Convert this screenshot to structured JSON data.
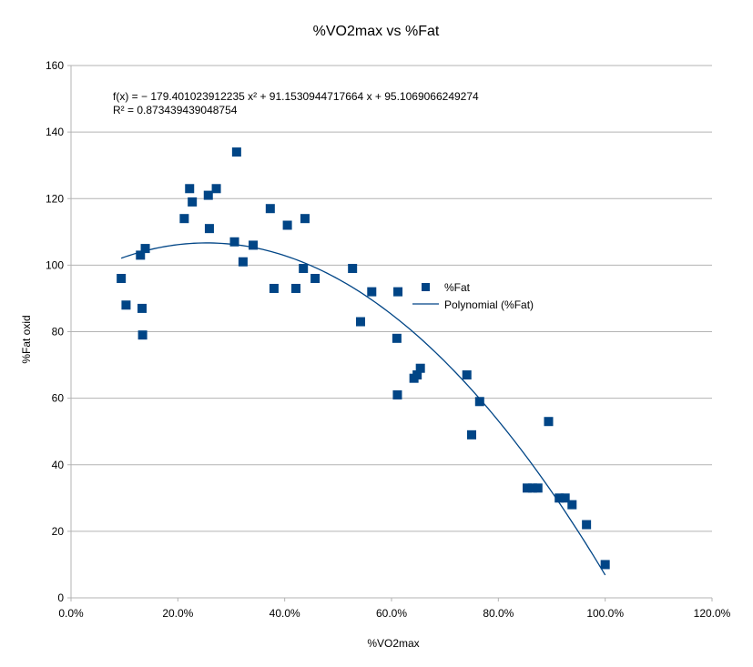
{
  "chart_data": {
    "type": "scatter",
    "title": "%VO2max vs %Fat",
    "xlabel": "%VO2max",
    "ylabel": "%Fat oxid",
    "xlim": [
      0,
      1.2
    ],
    "ylim": [
      0,
      160
    ],
    "x_ticks": [
      0,
      0.2,
      0.4,
      0.6,
      0.8,
      1.0,
      1.2
    ],
    "x_tick_labels": [
      "0.0%",
      "20.0%",
      "40.0%",
      "60.0%",
      "80.0%",
      "100.0%",
      "120.0%"
    ],
    "y_ticks": [
      0,
      20,
      40,
      60,
      80,
      100,
      120,
      140,
      160
    ],
    "y_tick_labels": [
      "0",
      "20",
      "40",
      "60",
      "80",
      "100",
      "120",
      "140",
      "160"
    ],
    "grid": "horizontal",
    "legend_position": "right",
    "colors": {
      "series": "#004586",
      "grid": "#b3b3b3",
      "axis": "#b3b3b3"
    },
    "series": [
      {
        "name": "%Fat",
        "kind": "markers",
        "marker": "square",
        "x": [
          0.094,
          0.103,
          0.13,
          0.133,
          0.134,
          0.139,
          0.212,
          0.222,
          0.227,
          0.257,
          0.259,
          0.272,
          0.306,
          0.31,
          0.322,
          0.341,
          0.373,
          0.38,
          0.405,
          0.421,
          0.435,
          0.438,
          0.457,
          0.527,
          0.542,
          0.563,
          0.61,
          0.611,
          0.612,
          0.642,
          0.648,
          0.654,
          0.741,
          0.75,
          0.765,
          0.854,
          0.864,
          0.874,
          0.894,
          0.914,
          0.925,
          0.938,
          0.965,
          1.0
        ],
        "y": [
          96,
          88,
          103,
          87,
          79,
          105,
          114,
          123,
          119,
          121,
          111,
          123,
          107,
          134,
          101,
          106,
          117,
          93,
          112,
          93,
          99,
          114,
          96,
          99,
          83,
          92,
          78,
          61,
          92,
          66,
          67,
          69,
          67,
          49,
          59,
          33,
          33,
          33,
          53,
          30,
          30,
          28,
          22,
          10
        ]
      },
      {
        "name": "Polynomial (%Fat)",
        "kind": "trendline",
        "fit": "polynomial",
        "degree": 2,
        "coefficients": [
          -179.401023912235,
          91.1530944717664,
          95.1069066249274
        ],
        "x_range": [
          0.094,
          1.0
        ]
      }
    ],
    "annotations": {
      "equation": "f(x) = − 179.401023912235 x² + 91.1530944717664 x + 95.1069066249274",
      "r_squared": "R² = 0.873439439048754"
    }
  }
}
